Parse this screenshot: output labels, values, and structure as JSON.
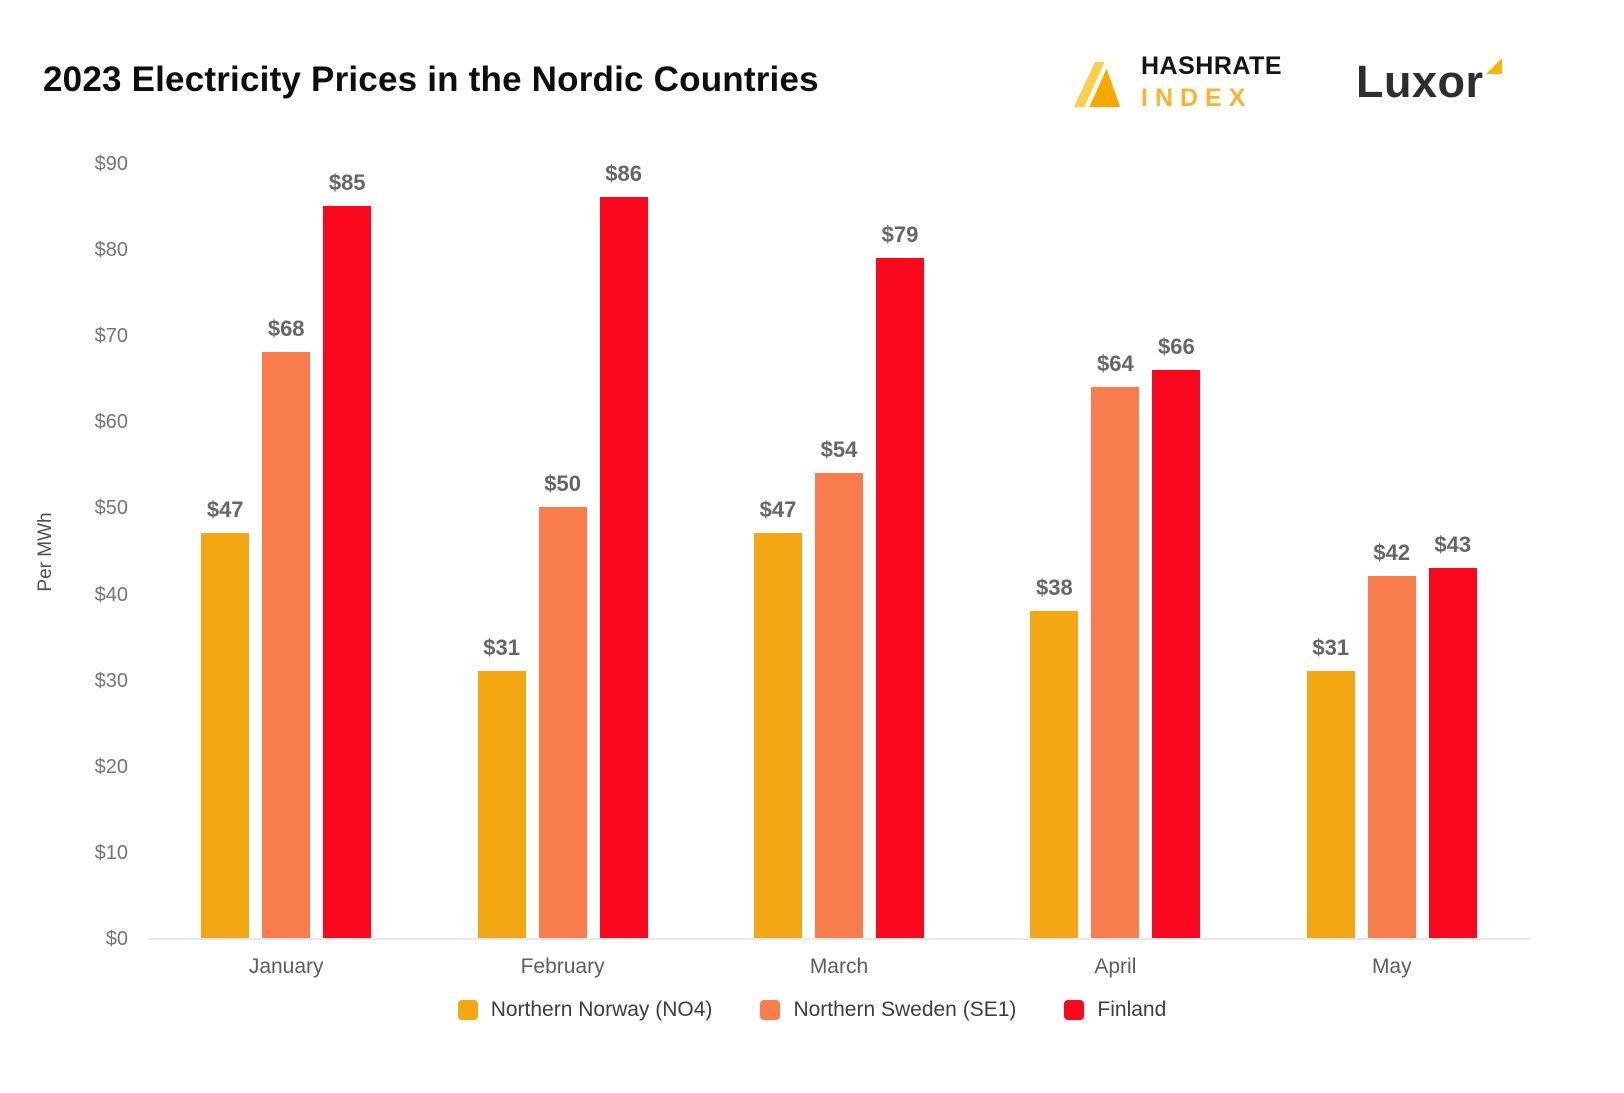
{
  "header": {
    "title": "2023 Electricity Prices in the Nordic Countries",
    "hashrate_logo": {
      "line1": "HASHRATE",
      "line2": "INDEX"
    },
    "luxor_logo": "Luxor"
  },
  "colors": {
    "norway_gold": "#F3A712",
    "sweden_orange": "#F87C4C",
    "finland_red": "#F9081E",
    "index_gold": "#F4B630",
    "axis_text": "#757575",
    "value_label_text": "#666666",
    "baseline": "#E8E8E8"
  },
  "chart_data": {
    "type": "bar",
    "title": "2023 Electricity Prices in the Nordic Countries",
    "xlabel": "",
    "ylabel": "Per MWh",
    "ylim": [
      0,
      90
    ],
    "yticks": [
      0,
      10,
      20,
      30,
      40,
      50,
      60,
      70,
      80,
      90
    ],
    "ytick_labels": [
      "$0",
      "$10",
      "$20",
      "$30",
      "$40",
      "$50",
      "$60",
      "$70",
      "$80",
      "$90"
    ],
    "ytick_prefix": "$",
    "value_label_prefix": "$",
    "grid": false,
    "legend_position": "bottom",
    "categories": [
      "January",
      "February",
      "March",
      "April",
      "May"
    ],
    "series": [
      {
        "name": "Northern Norway (NO4)",
        "color": "#F3A712",
        "values": [
          47,
          31,
          47,
          38,
          31
        ]
      },
      {
        "name": "Northern Sweden (SE1)",
        "color": "#F87C4C",
        "values": [
          68,
          50,
          54,
          64,
          42
        ]
      },
      {
        "name": "Finland",
        "color": "#F9081E",
        "values": [
          85,
          86,
          79,
          66,
          43
        ]
      }
    ]
  }
}
